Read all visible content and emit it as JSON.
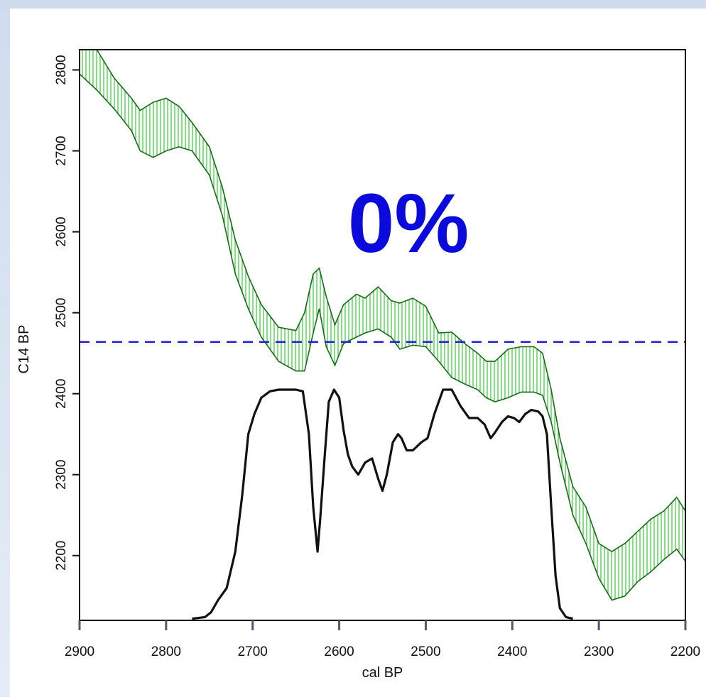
{
  "chart_data": {
    "type": "line",
    "title": "",
    "xlabel": "cal BP",
    "ylabel": "C14 BP",
    "xlim": [
      2900,
      2200
    ],
    "ylim": [
      2120,
      2825
    ],
    "x_ticks": [
      2900,
      2800,
      2700,
      2600,
      2500,
      2400,
      2300,
      2200
    ],
    "y_ticks": [
      2200,
      2300,
      2400,
      2500,
      2600,
      2700,
      2800
    ],
    "annotation": "0%",
    "reference_line": {
      "y": 2464,
      "style": "dashed",
      "color": "#2222cc"
    },
    "calibration_band": {
      "color": "#33cc33",
      "hatch": "vertical",
      "x": [
        2900,
        2880,
        2860,
        2840,
        2830,
        2815,
        2800,
        2785,
        2770,
        2750,
        2735,
        2720,
        2705,
        2690,
        2670,
        2650,
        2640,
        2630,
        2623,
        2615,
        2605,
        2595,
        2580,
        2570,
        2555,
        2540,
        2530,
        2515,
        2500,
        2485,
        2470,
        2455,
        2440,
        2430,
        2420,
        2405,
        2390,
        2375,
        2365,
        2355,
        2345,
        2330,
        2315,
        2300,
        2285,
        2270,
        2255,
        2240,
        2225,
        2210,
        2200
      ],
      "upper": [
        2825,
        2825,
        2790,
        2765,
        2750,
        2760,
        2765,
        2755,
        2735,
        2705,
        2655,
        2590,
        2545,
        2510,
        2482,
        2478,
        2500,
        2548,
        2555,
        2520,
        2485,
        2510,
        2523,
        2518,
        2532,
        2515,
        2512,
        2518,
        2508,
        2475,
        2476,
        2462,
        2450,
        2440,
        2440,
        2455,
        2458,
        2458,
        2450,
        2405,
        2345,
        2285,
        2260,
        2215,
        2205,
        2215,
        2230,
        2245,
        2255,
        2272,
        2255
      ],
      "lower": [
        2795,
        2775,
        2752,
        2725,
        2700,
        2692,
        2700,
        2705,
        2700,
        2670,
        2620,
        2548,
        2505,
        2470,
        2440,
        2428,
        2428,
        2475,
        2505,
        2458,
        2435,
        2462,
        2470,
        2475,
        2480,
        2470,
        2455,
        2460,
        2458,
        2440,
        2420,
        2412,
        2405,
        2395,
        2390,
        2395,
        2402,
        2402,
        2398,
        2365,
        2315,
        2250,
        2215,
        2172,
        2145,
        2150,
        2168,
        2180,
        2195,
        2208,
        2193
      ]
    },
    "series": [
      {
        "color": "#111111",
        "x": [
          2770,
          2755,
          2748,
          2740,
          2730,
          2720,
          2712,
          2705,
          2698,
          2690,
          2680,
          2670,
          2660,
          2650,
          2642,
          2635,
          2630,
          2625,
          2622,
          2617,
          2612,
          2606,
          2600,
          2595,
          2590,
          2585,
          2578,
          2570,
          2562,
          2555,
          2550,
          2545,
          2538,
          2532,
          2528,
          2522,
          2515,
          2505,
          2498,
          2490,
          2480,
          2470,
          2460,
          2450,
          2440,
          2432,
          2425,
          2420,
          2412,
          2405,
          2398,
          2392,
          2385,
          2378,
          2370,
          2365,
          2360,
          2355,
          2350,
          2345,
          2338,
          2330
        ],
        "y": [
          2122,
          2124,
          2130,
          2145,
          2160,
          2205,
          2275,
          2350,
          2375,
          2395,
          2403,
          2405,
          2405,
          2405,
          2403,
          2350,
          2260,
          2205,
          2245,
          2320,
          2390,
          2405,
          2395,
          2355,
          2325,
          2310,
          2300,
          2315,
          2320,
          2295,
          2280,
          2300,
          2340,
          2350,
          2345,
          2330,
          2330,
          2340,
          2345,
          2375,
          2405,
          2405,
          2385,
          2370,
          2370,
          2362,
          2345,
          2352,
          2365,
          2372,
          2370,
          2365,
          2375,
          2380,
          2378,
          2372,
          2350,
          2260,
          2175,
          2135,
          2124,
          2122
        ]
      }
    ]
  }
}
